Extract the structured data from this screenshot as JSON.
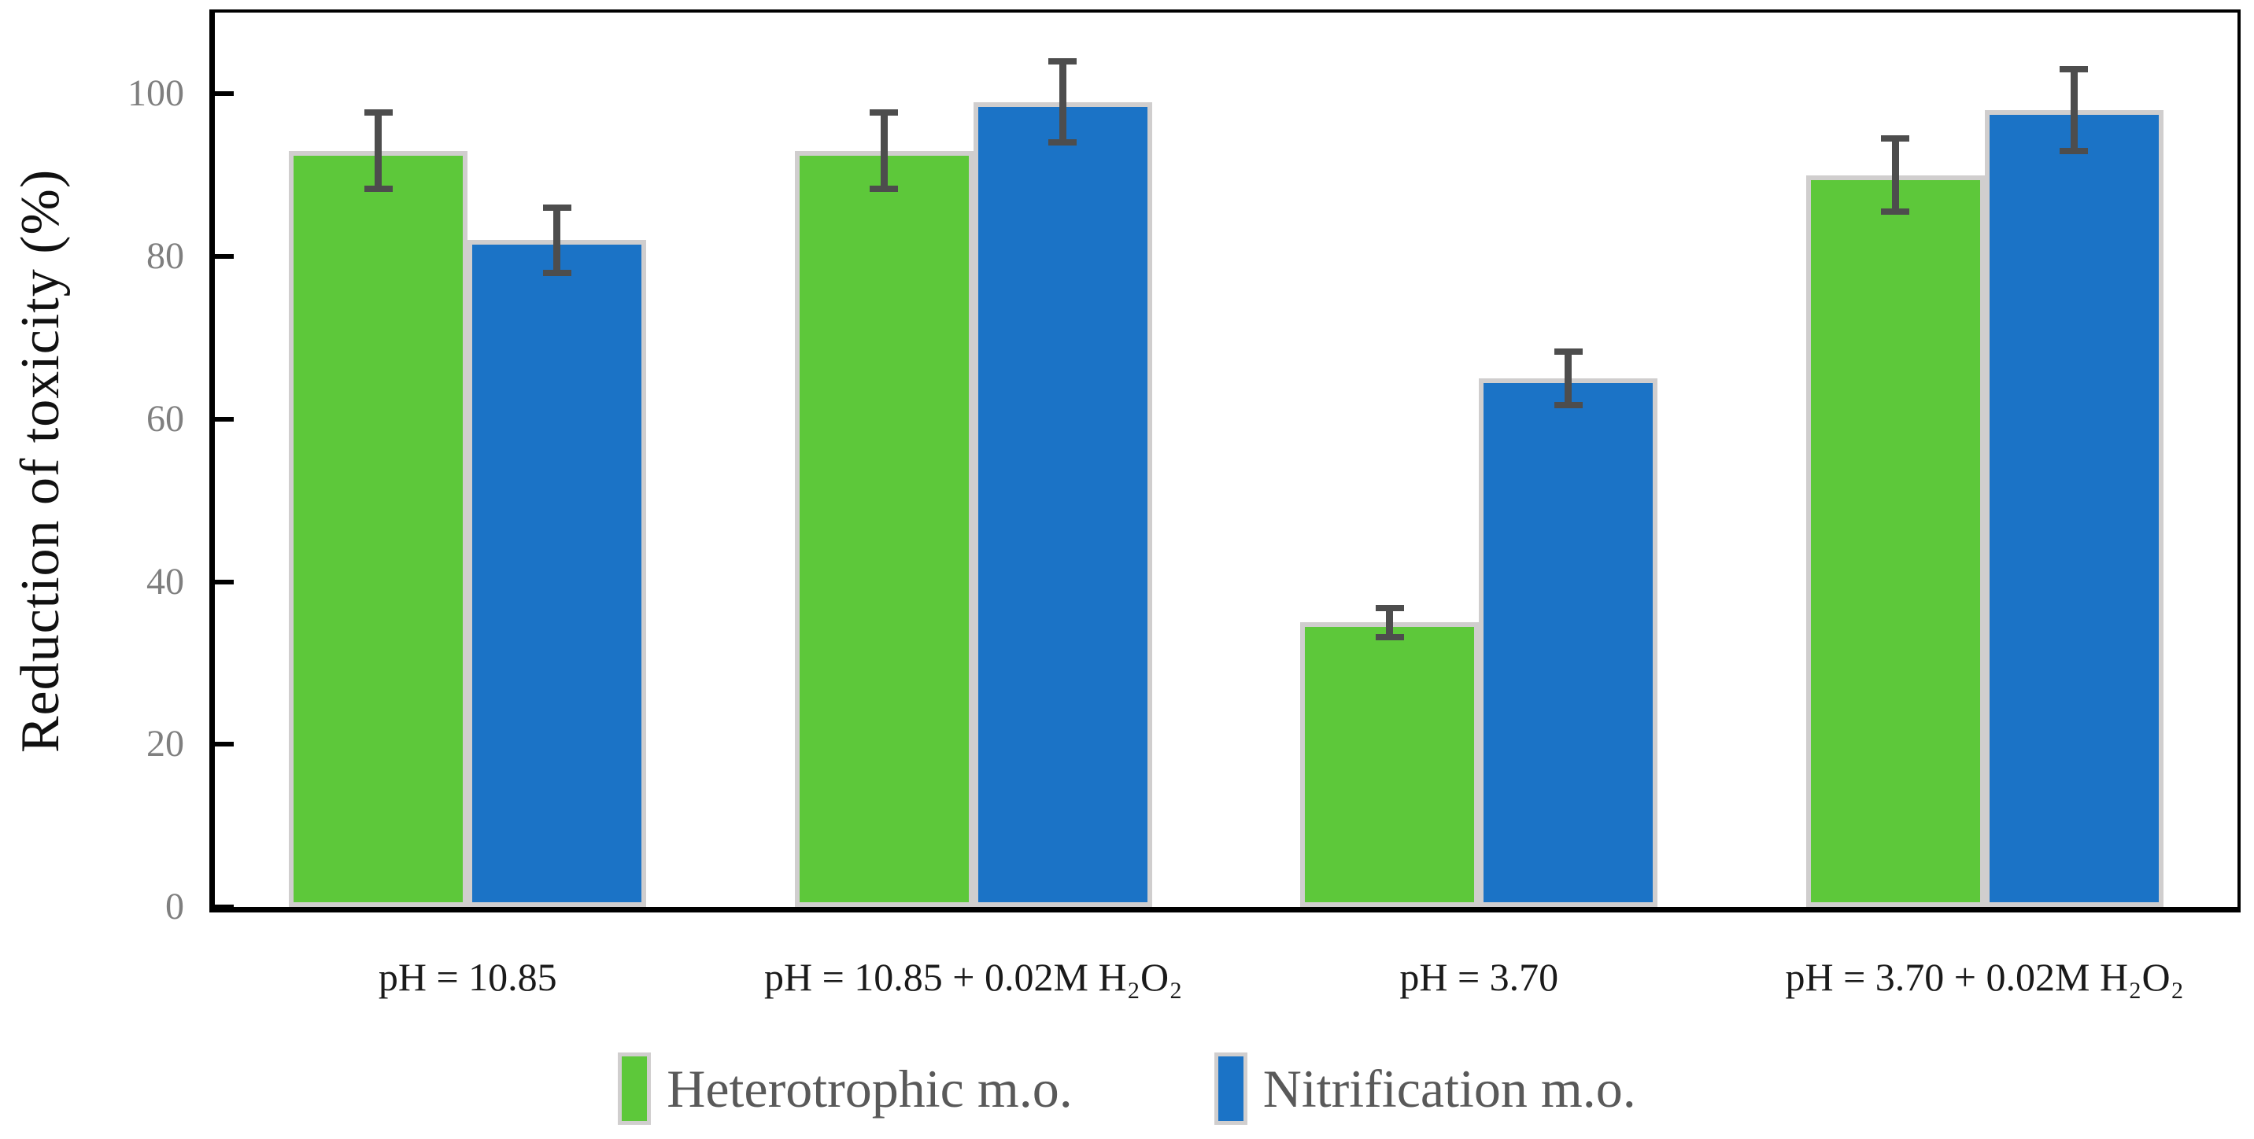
{
  "chart_data": {
    "type": "bar",
    "title": "",
    "xlabel": "",
    "ylabel": "Reduction of toxicity (%)",
    "ylim": [
      0,
      110
    ],
    "yticks": [
      0,
      20,
      40,
      60,
      80,
      100
    ],
    "grid": false,
    "legend_position": "bottom",
    "categories": [
      "pH = 10.85",
      "pH = 10.85 + 0.02M H₂O₂",
      "pH = 3.70",
      "pH = 3.70 + 0.02M H₂O₂"
    ],
    "series": [
      {
        "name": "Heterotrophic m.o.",
        "color": "#5dc83a",
        "values": [
          93,
          93,
          35,
          90
        ],
        "errors": [
          4.7,
          4.7,
          1.8,
          4.5
        ]
      },
      {
        "name": "Nitrification m.o.",
        "color": "#1b73c6",
        "values": [
          82,
          99,
          65,
          98
        ],
        "errors": [
          4,
          5,
          3.3,
          5
        ]
      }
    ],
    "colors": {
      "axis": "#000000",
      "bar_border": "#d0cece",
      "error_bar": "#4d4d4d",
      "tick_label": "#7f7f7f",
      "category_label": "#1a1a1a",
      "legend_text": "#595959",
      "y_title": "#111111"
    }
  }
}
